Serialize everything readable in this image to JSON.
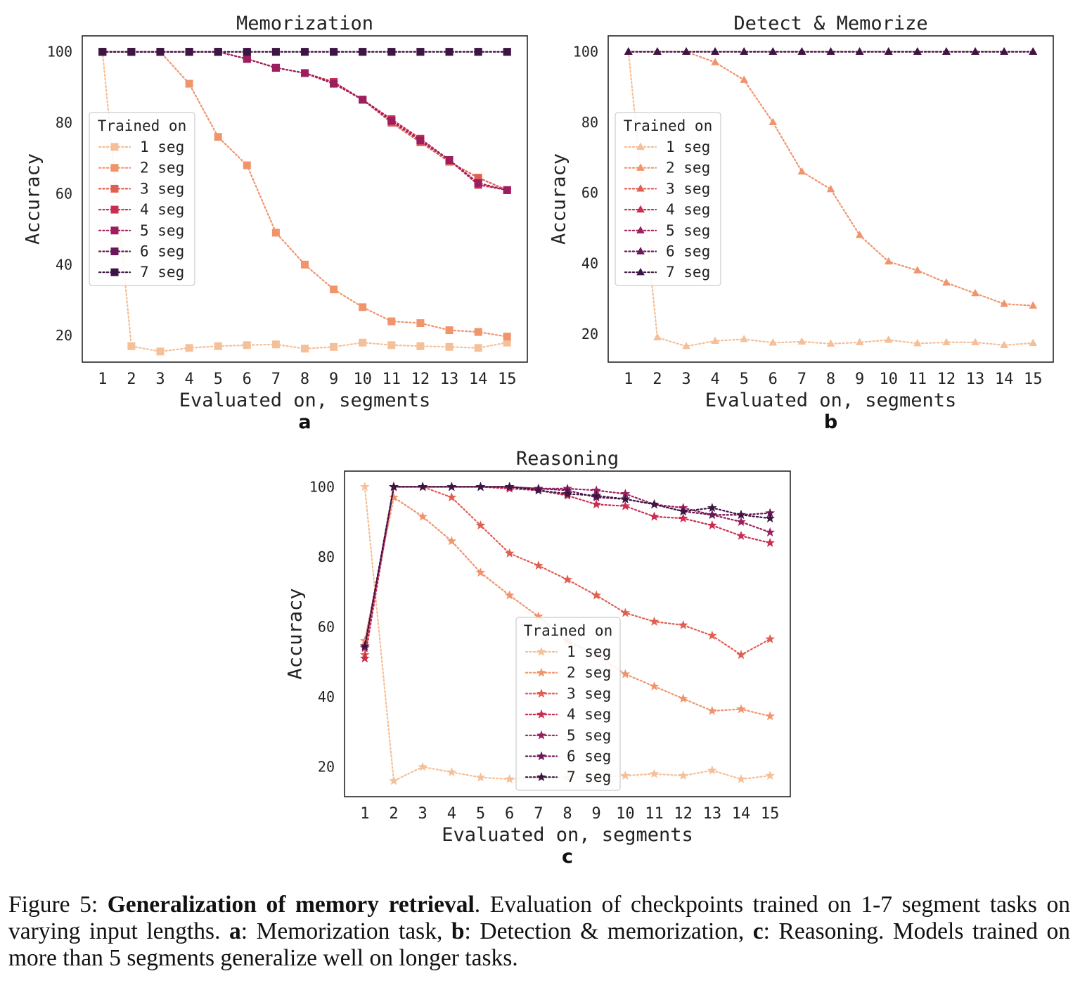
{
  "chart_data": [
    {
      "type": "line",
      "title": "Memorization",
      "panel_label": "a",
      "xlabel": "Evaluated on, segments",
      "ylabel": "Accuracy",
      "x": [
        1,
        2,
        3,
        4,
        5,
        6,
        7,
        8,
        9,
        10,
        11,
        12,
        13,
        14,
        15
      ],
      "xticks": [
        "1",
        "2",
        "3",
        "4",
        "5",
        "6",
        "7",
        "8",
        "9",
        "10",
        "11",
        "12",
        "13",
        "14",
        "15"
      ],
      "yticks": [
        "20",
        "40",
        "60",
        "80",
        "100"
      ],
      "ylim": [
        12.5,
        104.5
      ],
      "xlim": [
        0.3,
        15.7
      ],
      "marker": "square",
      "grid": false,
      "legend": {
        "title": "Trained on",
        "placement": "left",
        "entries": [
          "1 seg",
          "2 seg",
          "3 seg",
          "4 seg",
          "5 seg",
          "6 seg",
          "7 seg"
        ]
      },
      "series": [
        {
          "name": "1 seg",
          "color": "#f5bf98",
          "values": [
            100,
            17,
            15.5,
            16.5,
            17,
            17.3,
            17.5,
            16.3,
            16.8,
            18,
            17.3,
            17,
            16.8,
            16.5,
            18
          ]
        },
        {
          "name": "2 seg",
          "color": "#f0946c",
          "values": [
            100,
            100,
            100,
            91,
            76,
            68,
            49,
            40,
            33,
            28,
            24,
            23.5,
            21.5,
            21,
            19.7
          ]
        },
        {
          "name": "3 seg",
          "color": "#e05f50",
          "values": [
            100,
            100,
            100,
            100,
            100,
            98,
            95.5,
            94,
            91.5,
            86.5,
            80,
            74.5,
            69,
            64.5,
            61
          ]
        },
        {
          "name": "4 seg",
          "color": "#c92d50",
          "values": [
            100,
            100,
            100,
            100,
            100,
            98,
            95.5,
            94,
            91.5,
            86.5,
            81,
            75.5,
            69.5,
            62.5,
            61
          ]
        },
        {
          "name": "5 seg",
          "color": "#9d1e5f",
          "values": [
            100,
            100,
            100,
            100,
            100,
            98,
            95.5,
            94,
            91,
            86.5,
            80.5,
            75,
            69.5,
            63,
            61
          ]
        },
        {
          "name": "6 seg",
          "color": "#6a1857",
          "values": [
            100,
            100,
            100,
            100,
            100,
            100,
            100,
            100,
            100,
            100,
            100,
            100,
            100,
            100,
            100
          ]
        },
        {
          "name": "7 seg",
          "color": "#3b1643",
          "values": [
            100,
            100,
            100,
            100,
            100,
            100,
            100,
            100,
            100,
            100,
            100,
            100,
            100,
            100,
            100
          ]
        }
      ]
    },
    {
      "type": "line",
      "title": "Detect & Memorize",
      "panel_label": "b",
      "xlabel": "Evaluated on, segments",
      "ylabel": "Accuracy",
      "x": [
        1,
        2,
        3,
        4,
        5,
        6,
        7,
        8,
        9,
        10,
        11,
        12,
        13,
        14,
        15
      ],
      "xticks": [
        "1",
        "2",
        "3",
        "4",
        "5",
        "6",
        "7",
        "8",
        "9",
        "10",
        "11",
        "12",
        "13",
        "14",
        "15"
      ],
      "yticks": [
        "20",
        "40",
        "60",
        "80",
        "100"
      ],
      "ylim": [
        12.0,
        104.5
      ],
      "xlim": [
        0.3,
        15.7
      ],
      "marker": "triangle",
      "grid": false,
      "legend": {
        "title": "Trained on",
        "placement": "left",
        "entries": [
          "1 seg",
          "2 seg",
          "3 seg",
          "4 seg",
          "5 seg",
          "6 seg",
          "7 seg"
        ]
      },
      "series": [
        {
          "name": "1 seg",
          "color": "#f5bf98",
          "values": [
            100,
            19,
            16.5,
            18,
            18.5,
            17.5,
            17.8,
            17.2,
            17.6,
            18.3,
            17.3,
            17.6,
            17.6,
            16.8,
            17.4
          ]
        },
        {
          "name": "2 seg",
          "color": "#f0946c",
          "values": [
            100,
            100,
            100,
            97,
            92,
            80,
            66,
            61,
            48,
            40.5,
            38,
            34.5,
            31.5,
            28.5,
            28
          ]
        },
        {
          "name": "3 seg",
          "color": "#e05f50",
          "values": [
            100,
            100,
            100,
            100,
            100,
            100,
            100,
            100,
            100,
            100,
            100,
            100,
            100,
            100,
            100
          ]
        },
        {
          "name": "4 seg",
          "color": "#c92d50",
          "values": [
            100,
            100,
            100,
            100,
            100,
            100,
            100,
            100,
            100,
            100,
            100,
            100,
            100,
            100,
            100
          ]
        },
        {
          "name": "5 seg",
          "color": "#9d1e5f",
          "values": [
            100,
            100,
            100,
            100,
            100,
            100,
            100,
            100,
            100,
            100,
            100,
            100,
            100,
            100,
            100
          ]
        },
        {
          "name": "6 seg",
          "color": "#6a1857",
          "values": [
            100,
            100,
            100,
            100,
            100,
            100,
            100,
            100,
            100,
            100,
            100,
            100,
            100,
            100,
            100
          ]
        },
        {
          "name": "7 seg",
          "color": "#3b1643",
          "values": [
            100,
            100,
            100,
            100,
            100,
            100,
            100,
            100,
            100,
            100,
            100,
            100,
            100,
            100,
            100
          ]
        }
      ]
    },
    {
      "type": "line",
      "title": "Reasoning",
      "panel_label": "c",
      "xlabel": "Evaluated on, segments",
      "ylabel": "Accuracy",
      "x": [
        1,
        2,
        3,
        4,
        5,
        6,
        7,
        8,
        9,
        10,
        11,
        12,
        13,
        14,
        15
      ],
      "xticks": [
        "1",
        "2",
        "3",
        "4",
        "5",
        "6",
        "7",
        "8",
        "9",
        "10",
        "11",
        "12",
        "13",
        "14",
        "15"
      ],
      "yticks": [
        "20",
        "40",
        "60",
        "80",
        "100"
      ],
      "ylim": [
        11.5,
        104.5
      ],
      "xlim": [
        0.3,
        15.7
      ],
      "marker": "star",
      "grid": false,
      "legend": {
        "title": "Trained on",
        "placement": "center",
        "entries": [
          "1 seg",
          "2 seg",
          "3 seg",
          "4 seg",
          "5 seg",
          "6 seg",
          "7 seg"
        ]
      },
      "series": [
        {
          "name": "1 seg",
          "color": "#f5bf98",
          "values": [
            100,
            16,
            20,
            18.5,
            17,
            16.5,
            17,
            17,
            17.2,
            17.5,
            18,
            17.5,
            19,
            16.5,
            17.5
          ]
        },
        {
          "name": "2 seg",
          "color": "#f0946c",
          "values": [
            56,
            97,
            91.5,
            84.5,
            75.5,
            69,
            63,
            56,
            52,
            46.5,
            43,
            39.5,
            36,
            36.5,
            34.5
          ]
        },
        {
          "name": "3 seg",
          "color": "#e05f50",
          "values": [
            52,
            100,
            100,
            97,
            89,
            81,
            77.5,
            73.5,
            69,
            64,
            61.5,
            60.5,
            57.5,
            52,
            56.5
          ]
        },
        {
          "name": "4 seg",
          "color": "#c92d50",
          "values": [
            51,
            100,
            100,
            100,
            100,
            99.5,
            99,
            97.5,
            95,
            94.5,
            91.5,
            91,
            89,
            86,
            84
          ]
        },
        {
          "name": "5 seg",
          "color": "#9d1e5f",
          "values": [
            54,
            100,
            100,
            100,
            100,
            100,
            99.5,
            99.5,
            99,
            98,
            95,
            94,
            92,
            90,
            87
          ]
        },
        {
          "name": "6 seg",
          "color": "#6a1857",
          "values": [
            54.5,
            100,
            100,
            100,
            100,
            100,
            99.5,
            99,
            97,
            96.5,
            95,
            93,
            92,
            92,
            92.5
          ]
        },
        {
          "name": "7 seg",
          "color": "#3b1643",
          "values": [
            54.5,
            100,
            100,
            100,
            100,
            100,
            99,
            98,
            97.5,
            96.5,
            95,
            93,
            94,
            92,
            91
          ]
        }
      ]
    }
  ],
  "caption": {
    "figure_label": "Figure 5:",
    "bold_title": "Generalization of memory retrieval",
    "text_1": ". Evaluation of checkpoints trained on 1-7 segment tasks on varying input lengths. ",
    "a_label": "a",
    "a_text": ": Memorization task, ",
    "b_label": "b",
    "b_text": ": Detection & memorization, ",
    "c_label": "c",
    "c_text": ": Reasoning. Models trained on more than 5 segments generalize well on longer tasks."
  }
}
